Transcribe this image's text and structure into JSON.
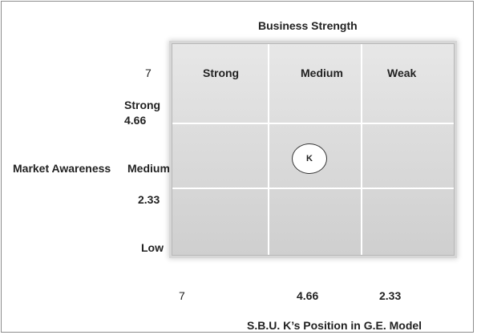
{
  "top_title": "Business Strength",
  "columns": [
    "Strong",
    "Medium",
    "Weak"
  ],
  "y_axis": {
    "title": "Market Awareness",
    "labels": {
      "top_value": "7",
      "strong": "Strong",
      "v466": "4.66",
      "medium": "Medium",
      "v233": "2.33",
      "low": "Low"
    }
  },
  "x_axis": {
    "ticks": [
      "7",
      "4.66",
      "2.33"
    ]
  },
  "marker": {
    "label": "K",
    "column": "Medium",
    "row": "Medium"
  },
  "caption": "S.B.U. K’s Position in G.E. Model"
}
